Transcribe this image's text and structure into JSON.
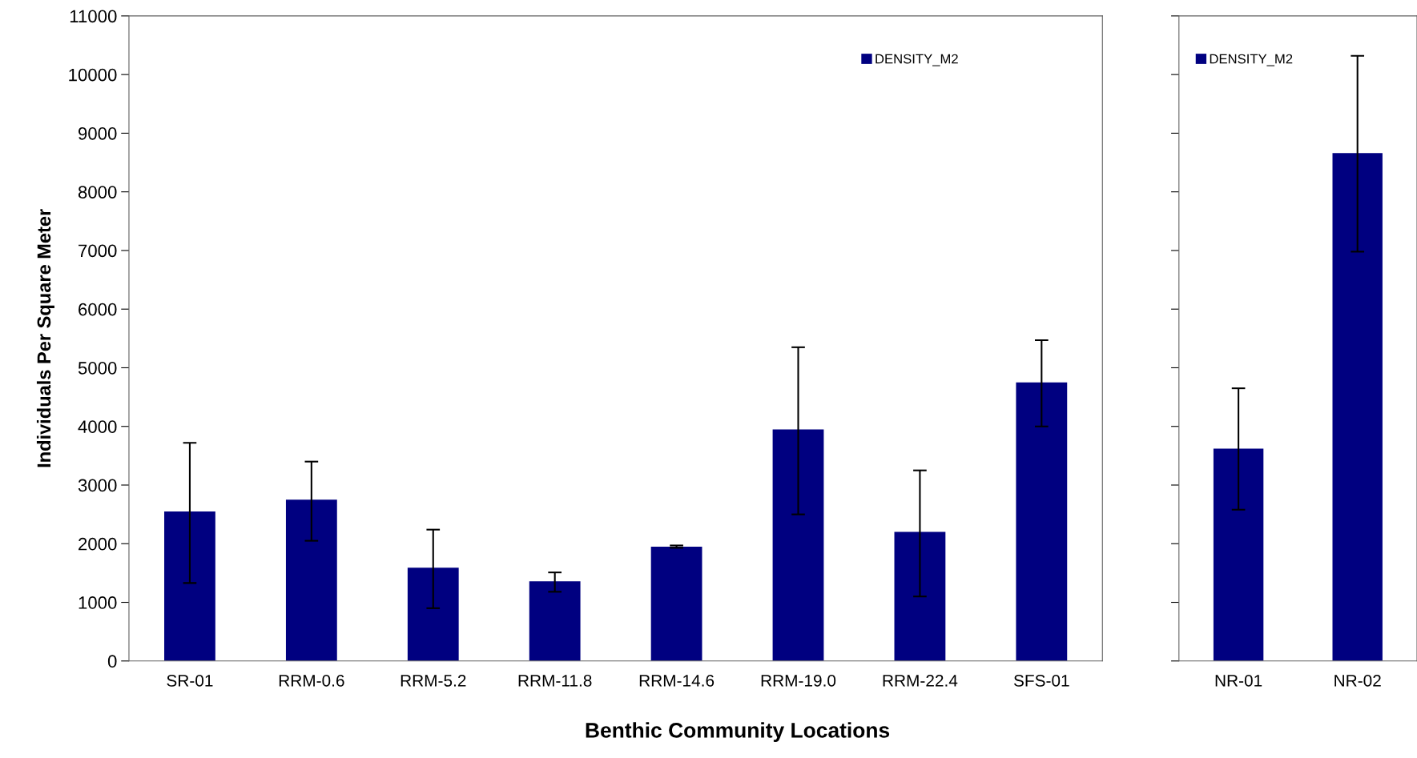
{
  "chart_data": [
    {
      "type": "bar",
      "ylabel": "Individuals Per Square Meter",
      "xlabel": "Benthic Community Locations",
      "categories": [
        "SR-01",
        "RRM-0.6",
        "RRM-5.2",
        "RRM-11.8",
        "RRM-14.6",
        "RRM-19.0",
        "RRM-22.4",
        "SFS-01"
      ],
      "series": [
        {
          "name": "DENSITY_M2",
          "color": "#000080",
          "values": [
            2550,
            2750,
            1590,
            1360,
            1950,
            3950,
            2200,
            4750
          ],
          "errors": [
            [
              1330,
              3720
            ],
            [
              2050,
              3400
            ],
            [
              900,
              2240
            ],
            [
              1180,
              1510
            ],
            [
              1930,
              1970
            ],
            [
              2500,
              5350
            ],
            [
              1100,
              3250
            ],
            [
              4000,
              5470
            ]
          ]
        }
      ],
      "ylim": [
        0,
        11000
      ],
      "yticks": [
        0,
        1000,
        2000,
        3000,
        4000,
        5000,
        6000,
        7000,
        8000,
        9000,
        10000,
        11000
      ],
      "grid": false,
      "legend": "top right"
    },
    {
      "type": "bar",
      "categories": [
        "NR-01",
        "NR-02"
      ],
      "series": [
        {
          "name": "DENSITY_M2",
          "color": "#000080",
          "values": [
            3620,
            8660
          ],
          "errors": [
            [
              2580,
              4650
            ],
            [
              6980,
              10320
            ]
          ]
        }
      ],
      "ylim": [
        0,
        11000
      ],
      "yticks": [
        0,
        1000,
        2000,
        3000,
        4000,
        5000,
        6000,
        7000,
        8000,
        9000,
        10000,
        11000
      ],
      "tick_labels": "x",
      "grid": false,
      "legend": "top left"
    }
  ]
}
